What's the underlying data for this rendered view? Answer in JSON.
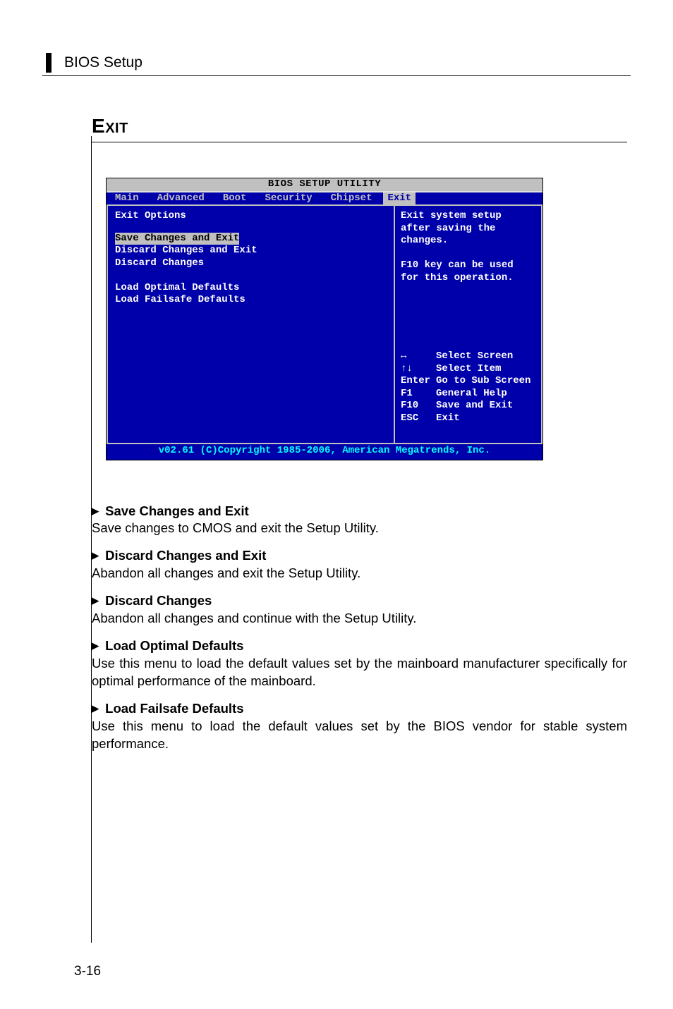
{
  "header": {
    "title": "BIOS Setup"
  },
  "section": {
    "title": "Exit"
  },
  "bios": {
    "window_title": "BIOS SETUP UTILITY",
    "tabs": [
      "Main",
      "Advanced",
      "Boot",
      "Security",
      "Chipset",
      "Exit"
    ],
    "selected_tab": "Exit",
    "left_heading": "Exit Options",
    "items": [
      "Save Changes and Exit",
      "Discard Changes and Exit",
      "Discard Changes",
      "",
      "Load Optimal Defaults",
      "Load Failsafe Defaults"
    ],
    "selected_item": "Save Changes and Exit",
    "help_lines": [
      "Exit system setup",
      "after saving the",
      "changes.",
      "",
      "F10 key can be used",
      "for this operation."
    ],
    "keys": [
      {
        "k": "↔",
        "d": "Select Screen"
      },
      {
        "k": "↑↓",
        "d": "Select Item"
      },
      {
        "k": "Enter",
        "d": "Go to Sub Screen"
      },
      {
        "k": "F1",
        "d": "General Help"
      },
      {
        "k": "F10",
        "d": "Save and Exit"
      },
      {
        "k": "ESC",
        "d": "Exit"
      }
    ],
    "footer": "v02.61 (C)Copyright 1985-2006, American Megatrends, Inc.",
    "colors": {
      "bg": "#0000aa",
      "frame": "#c0c0c0",
      "text": "#ffffff",
      "highlight_bg": "#c0c0c0",
      "footer_text": "#00ffff"
    }
  },
  "descriptions": [
    {
      "title": "Save Changes and Exit",
      "body": "Save changes to CMOS and exit the Setup Utility."
    },
    {
      "title": "Discard Changes and Exit",
      "body": "Abandon all changes and exit the Setup Utility."
    },
    {
      "title": "Discard Changes",
      "body": "Abandon all changes and continue with the Setup Utility."
    },
    {
      "title": "Load Optimal Defaults",
      "body": "Use this menu to load the default values set by the mainboard manufacturer specifically for optimal performance of the mainboard."
    },
    {
      "title": "Load Failsafe Defaults",
      "body": "Use this menu to load the default values set by the BIOS vendor for stable system performance."
    }
  ],
  "page_number": "3-16"
}
